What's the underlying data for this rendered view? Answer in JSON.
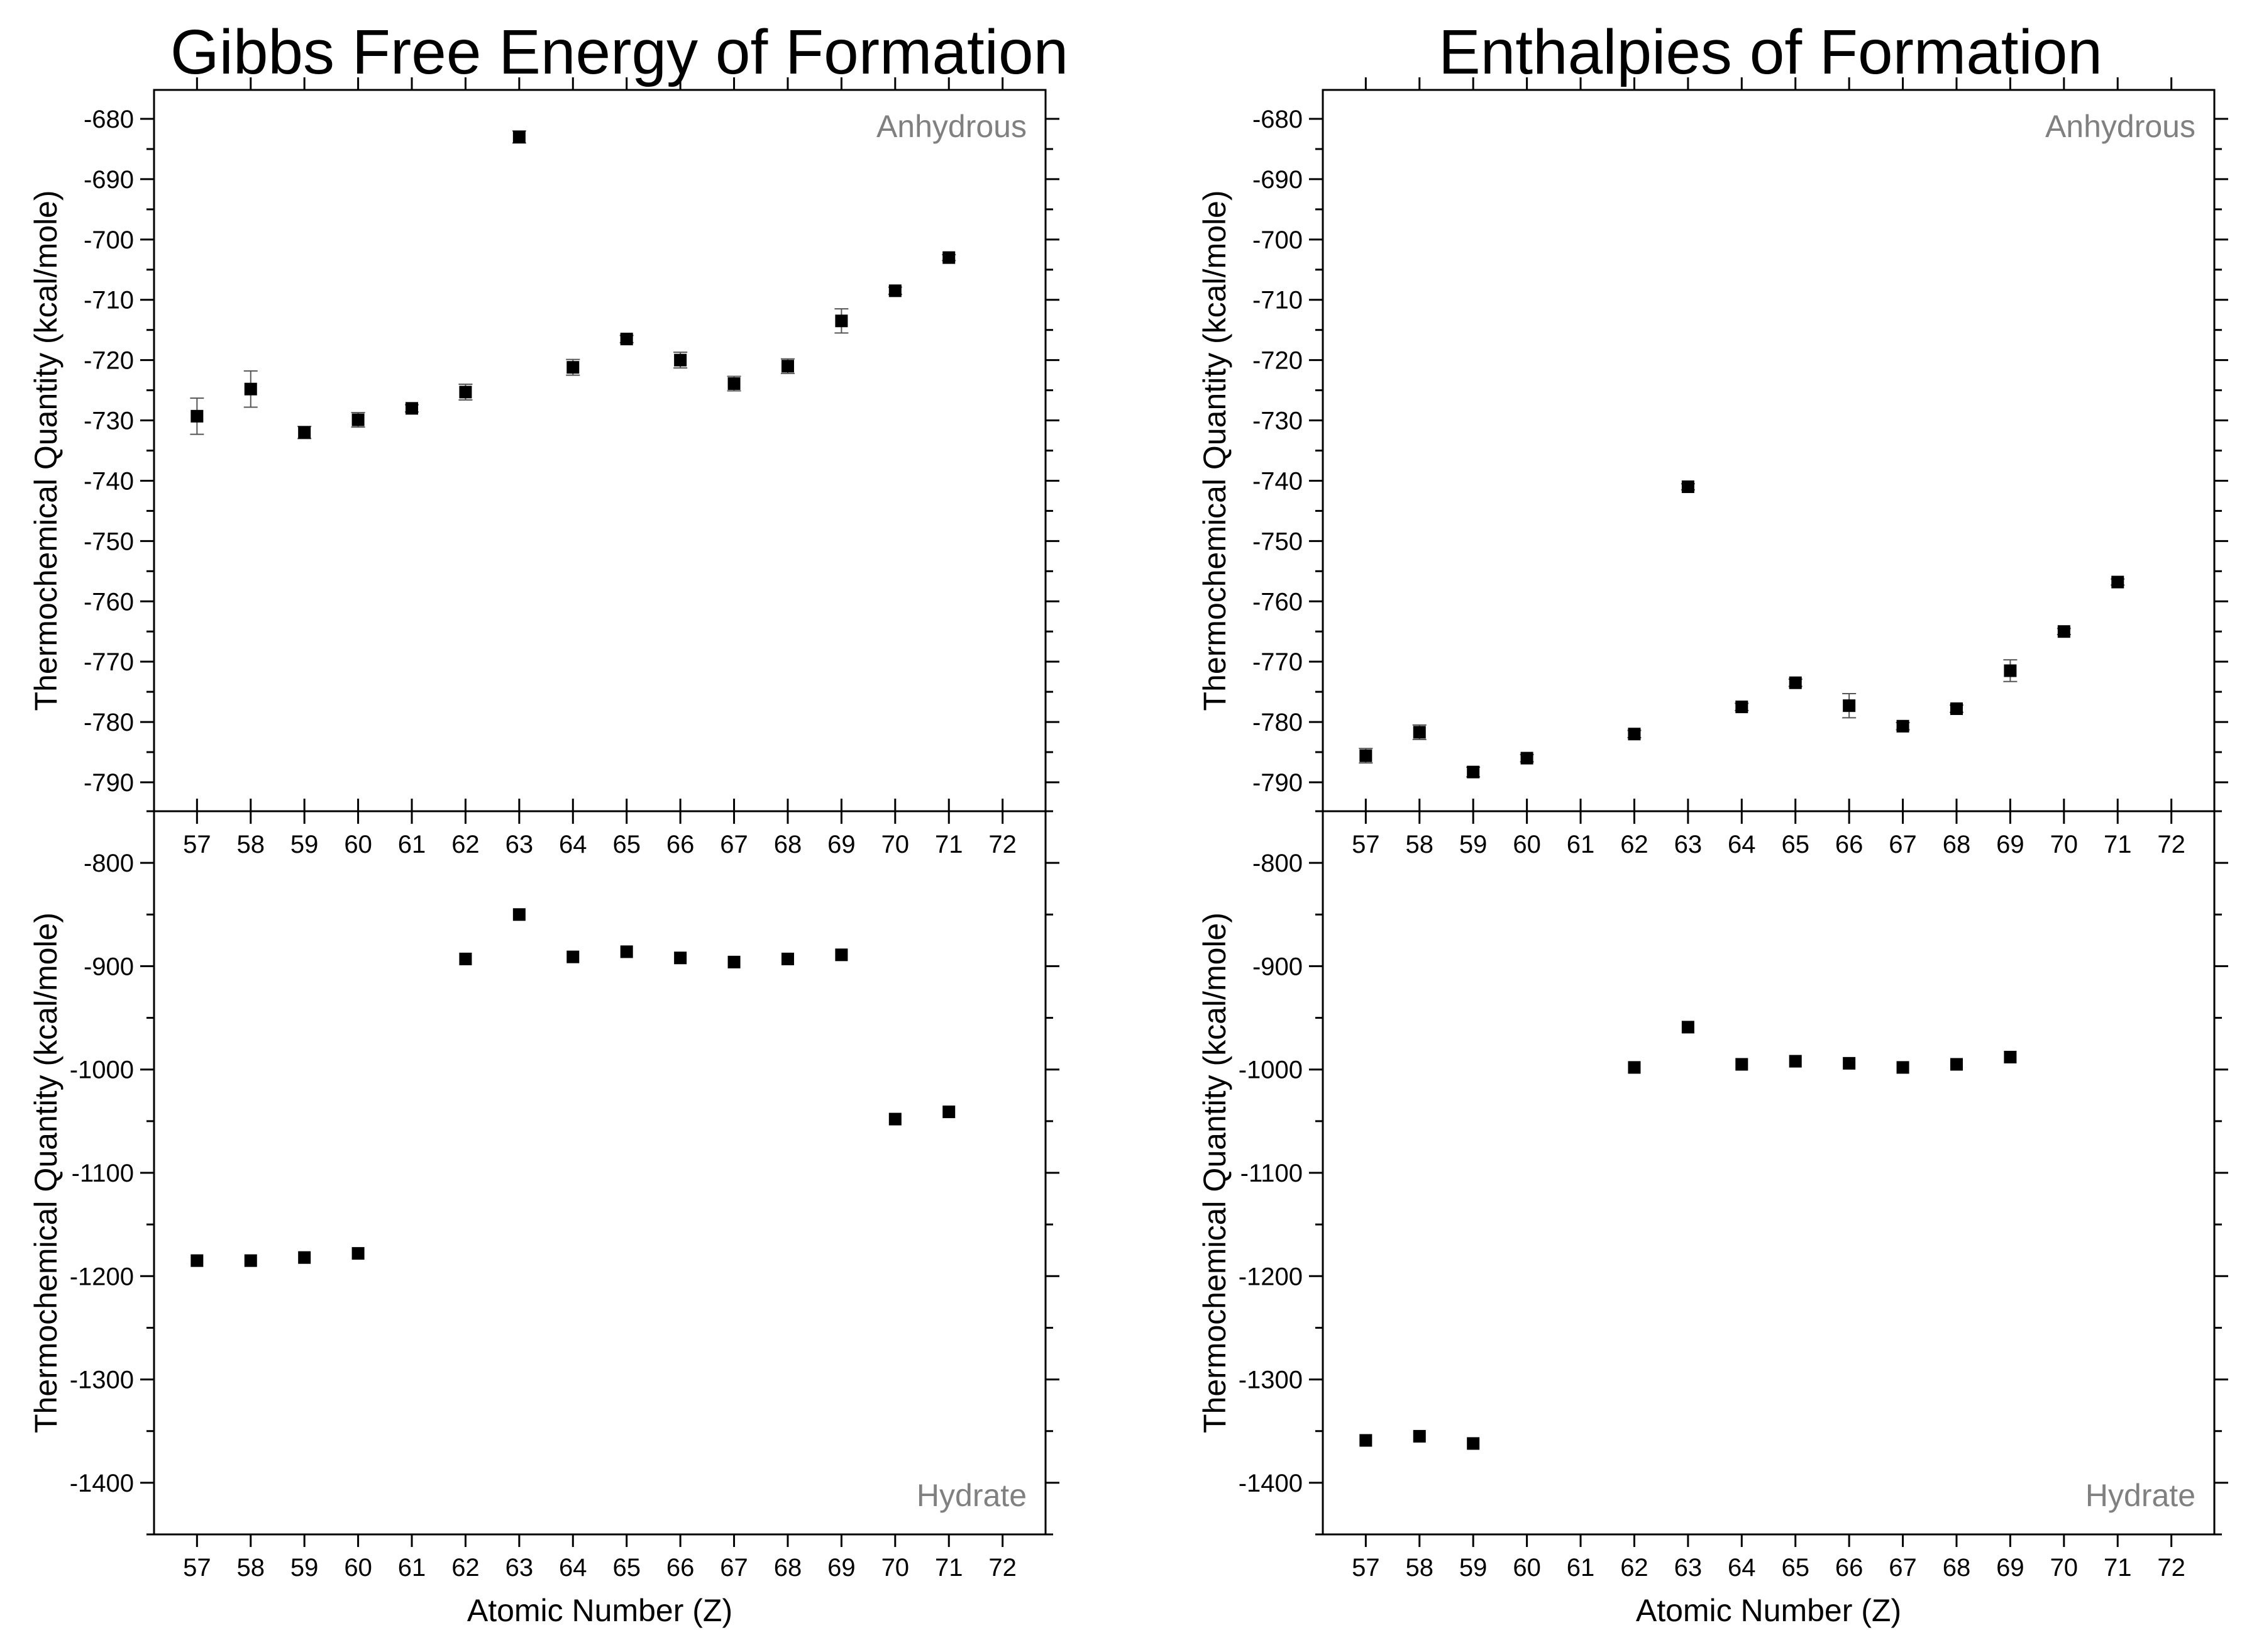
{
  "chart_data": [
    {
      "type": "scatter",
      "title": "Gibbs Free Energy of Formation",
      "xlabel": "Atomic Number (Z)",
      "ylabel": "Thermochemical Quantity (kcal/mole)",
      "x_ticks": [
        57,
        58,
        59,
        60,
        61,
        62,
        63,
        64,
        65,
        66,
        67,
        68,
        69,
        70,
        71,
        72
      ],
      "xlim": [
        56.2,
        72.8
      ],
      "grid": false,
      "subplots": [
        {
          "label": "Anhydrous",
          "ylim": [
            -794.8,
            -675.2
          ],
          "y_ticks": [
            -680,
            -690,
            -700,
            -710,
            -720,
            -730,
            -740,
            -750,
            -760,
            -770,
            -780,
            -790
          ],
          "points": [
            {
              "x": 57,
              "y": -729.3,
              "err": 3.0
            },
            {
              "x": 58,
              "y": -724.8,
              "err": 3.0
            },
            {
              "x": 59,
              "y": -732.0,
              "err": 1.0
            },
            {
              "x": 60,
              "y": -729.9,
              "err": 1.2
            },
            {
              "x": 61,
              "y": -728.0,
              "err": 0.6
            },
            {
              "x": 62,
              "y": -725.3,
              "err": 1.3
            },
            {
              "x": 63,
              "y": -683.0,
              "err": 1.0
            },
            {
              "x": 64,
              "y": -721.2,
              "err": 1.3
            },
            {
              "x": 65,
              "y": -716.5,
              "err": 0.6
            },
            {
              "x": 66,
              "y": -720.0,
              "err": 1.3
            },
            {
              "x": 67,
              "y": -723.9,
              "err": 1.2
            },
            {
              "x": 68,
              "y": -721.0,
              "err": 1.2
            },
            {
              "x": 69,
              "y": -713.5,
              "err": 2.0
            },
            {
              "x": 70,
              "y": -708.5,
              "err": 0.6
            },
            {
              "x": 71,
              "y": -703.0,
              "err": 0.5
            }
          ]
        },
        {
          "label": "Hydrate",
          "ylim": [
            -1450,
            -750
          ],
          "y_ticks": [
            -800,
            -900,
            -1000,
            -1100,
            -1200,
            -1300,
            -1400
          ],
          "points": [
            {
              "x": 57,
              "y": -1185
            },
            {
              "x": 58,
              "y": -1185
            },
            {
              "x": 59,
              "y": -1182
            },
            {
              "x": 60,
              "y": -1178
            },
            {
              "x": 62,
              "y": -893
            },
            {
              "x": 63,
              "y": -850
            },
            {
              "x": 64,
              "y": -891
            },
            {
              "x": 65,
              "y": -886
            },
            {
              "x": 66,
              "y": -892
            },
            {
              "x": 67,
              "y": -896
            },
            {
              "x": 68,
              "y": -893
            },
            {
              "x": 69,
              "y": -889
            },
            {
              "x": 70,
              "y": -1048
            },
            {
              "x": 71,
              "y": -1041
            }
          ]
        }
      ]
    },
    {
      "type": "scatter",
      "title": "Enthalpies of Formation",
      "xlabel": "Atomic Number (Z)",
      "ylabel": "Thermochemical Quantity (kcal/mole)",
      "x_ticks": [
        57,
        58,
        59,
        60,
        61,
        62,
        63,
        64,
        65,
        66,
        67,
        68,
        69,
        70,
        71,
        72
      ],
      "xlim": [
        56.2,
        72.8
      ],
      "grid": false,
      "subplots": [
        {
          "label": "Anhydrous",
          "ylim": [
            -794.8,
            -675.2
          ],
          "y_ticks": [
            -680,
            -690,
            -700,
            -710,
            -720,
            -730,
            -740,
            -750,
            -760,
            -770,
            -780,
            -790
          ],
          "points": [
            {
              "x": 57,
              "y": -785.6,
              "err": 1.2
            },
            {
              "x": 58,
              "y": -781.7,
              "err": 1.2
            },
            {
              "x": 59,
              "y": -788.3,
              "err": 0.8
            },
            {
              "x": 60,
              "y": -786.0,
              "err": 0.6
            },
            {
              "x": 62,
              "y": -782.0,
              "err": 0.6
            },
            {
              "x": 63,
              "y": -741.0,
              "err": 0.5
            },
            {
              "x": 64,
              "y": -777.5,
              "err": 0.6
            },
            {
              "x": 65,
              "y": -773.5,
              "err": 0.6
            },
            {
              "x": 66,
              "y": -777.3,
              "err": 2.0
            },
            {
              "x": 67,
              "y": -780.7,
              "err": 0.6
            },
            {
              "x": 68,
              "y": -777.8,
              "err": 0.6
            },
            {
              "x": 69,
              "y": -771.5,
              "err": 1.8
            },
            {
              "x": 70,
              "y": -765.0,
              "err": 0.5
            },
            {
              "x": 71,
              "y": -756.8,
              "err": 0.5
            }
          ]
        },
        {
          "label": "Hydrate",
          "ylim": [
            -1450,
            -750
          ],
          "y_ticks": [
            -800,
            -900,
            -1000,
            -1100,
            -1200,
            -1300,
            -1400
          ],
          "points": [
            {
              "x": 57,
              "y": -1359
            },
            {
              "x": 58,
              "y": -1355
            },
            {
              "x": 59,
              "y": -1362
            },
            {
              "x": 62,
              "y": -998
            },
            {
              "x": 63,
              "y": -959
            },
            {
              "x": 64,
              "y": -995
            },
            {
              "x": 65,
              "y": -992
            },
            {
              "x": 66,
              "y": -994
            },
            {
              "x": 67,
              "y": -998
            },
            {
              "x": 68,
              "y": -995
            },
            {
              "x": 69,
              "y": -988
            }
          ]
        }
      ]
    }
  ]
}
